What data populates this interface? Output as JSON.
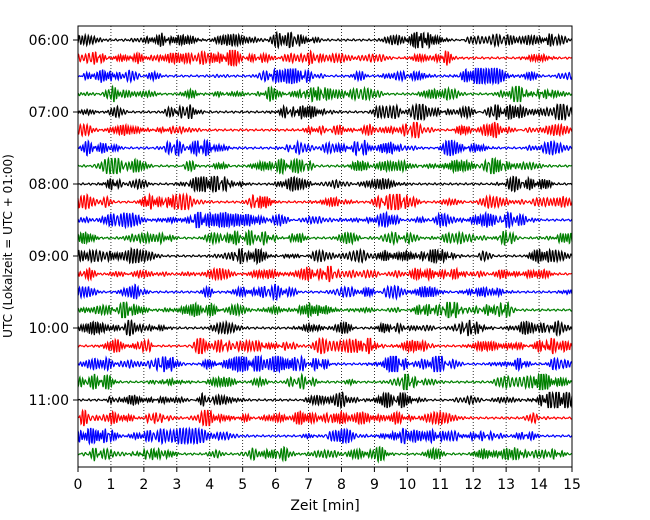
{
  "chart_data": {
    "type": "line",
    "title": "",
    "xlabel": "Zeit  [min]",
    "ylabel": "UTC (Lokalzeit = UTC + 01:00)",
    "xlim": [
      0,
      15
    ],
    "x_ticks": [
      0,
      1,
      2,
      3,
      4,
      5,
      6,
      7,
      8,
      9,
      10,
      11,
      12,
      13,
      14,
      15
    ],
    "x_tick_labels": [
      "0",
      "1",
      "2",
      "3",
      "4",
      "5",
      "6",
      "7",
      "8",
      "9",
      "10",
      "11",
      "12",
      "13",
      "14",
      "15"
    ],
    "y_tick_labels": [
      "06:00",
      "07:00",
      "08:00",
      "09:00",
      "10:00",
      "11:00"
    ],
    "y_tick_trace_index": [
      0,
      4,
      8,
      12,
      16,
      20
    ],
    "x_grid": true,
    "x_grid_style": "dotted",
    "legend": "none",
    "trace_start_times": [
      "06:00",
      "06:15",
      "06:30",
      "06:45",
      "07:00",
      "07:15",
      "07:30",
      "07:45",
      "08:00",
      "08:15",
      "08:30",
      "08:45",
      "09:00",
      "09:15",
      "09:30",
      "09:45",
      "10:00",
      "10:15",
      "10:30",
      "10:45",
      "11:00",
      "11:15",
      "11:30",
      "11:45"
    ],
    "trace_colors": [
      "#000000",
      "#ff0000",
      "#0000ff",
      "#008000"
    ],
    "trace_count": 24
  }
}
